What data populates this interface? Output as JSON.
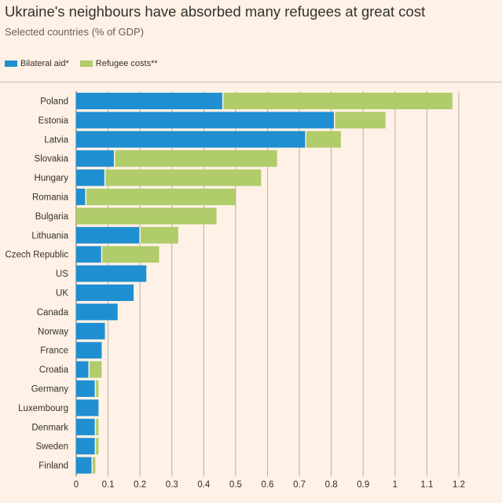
{
  "title": "Ukraine's neighbours have absorbed many refugees at great cost",
  "subtitle": "Selected countries (% of GDP)",
  "legend": [
    {
      "label": "Bilateral aid*",
      "color": "#1f8fd1"
    },
    {
      "label": "Refugee costs**",
      "color": "#b0cc6b"
    }
  ],
  "chart_data": {
    "type": "bar",
    "orientation": "horizontal",
    "stacked": true,
    "title": "Ukraine's neighbours have absorbed many refugees at great cost",
    "subtitle": "Selected countries (% of GDP)",
    "xlabel": "",
    "ylabel": "",
    "xlim": [
      0,
      1.2
    ],
    "xticks": [
      0,
      0.1,
      0.2,
      0.3,
      0.4,
      0.5,
      0.6,
      0.7,
      0.8,
      0.9,
      1,
      1.1,
      1.2
    ],
    "grid": true,
    "legend_position": "top-left",
    "categories": [
      "Poland",
      "Estonia",
      "Latvia",
      "Slovakia",
      "Hungary",
      "Romania",
      "Bulgaria",
      "Lithuania",
      "Czech Republic",
      "US",
      "UK",
      "Canada",
      "Norway",
      "France",
      "Croatia",
      "Germany",
      "Luxembourg",
      "Denmark",
      "Sweden",
      "Finland"
    ],
    "series": [
      {
        "name": "Bilateral aid*",
        "color": "#1f8fd1",
        "values": [
          0.46,
          0.81,
          0.72,
          0.12,
          0.09,
          0.03,
          0.0,
          0.2,
          0.08,
          0.22,
          0.18,
          0.13,
          0.09,
          0.08,
          0.04,
          0.06,
          0.07,
          0.06,
          0.06,
          0.05
        ]
      },
      {
        "name": "Refugee costs**",
        "color": "#b0cc6b",
        "values": [
          0.72,
          0.16,
          0.11,
          0.51,
          0.49,
          0.47,
          0.44,
          0.12,
          0.18,
          0.0,
          0.0,
          0.0,
          0.0,
          0.0,
          0.04,
          0.01,
          0.0,
          0.01,
          0.01,
          0.01
        ]
      }
    ]
  }
}
